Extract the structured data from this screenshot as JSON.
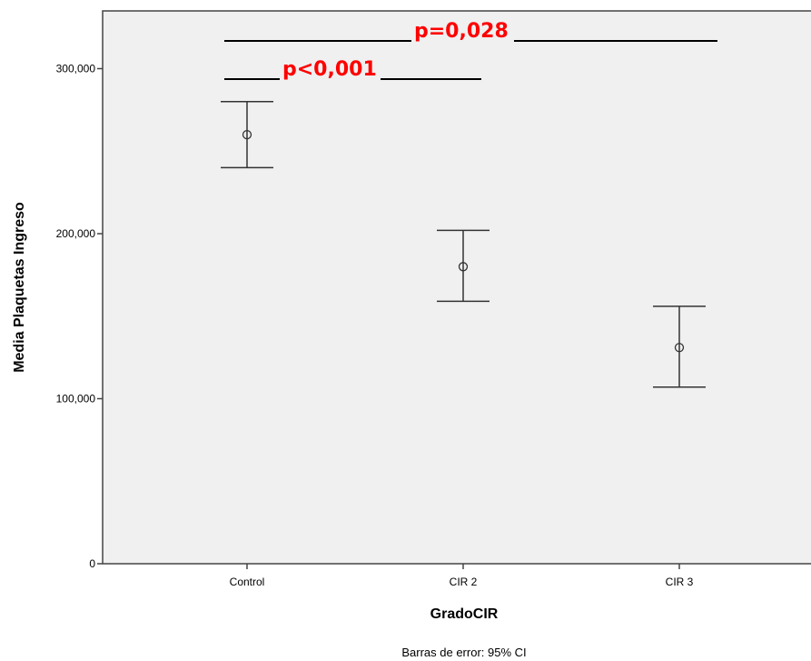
{
  "chart_data": {
    "type": "scatter",
    "subtype": "error-bar",
    "title": "",
    "xlabel": "GradoCIR",
    "ylabel": "Media Plaquetas Ingreso",
    "ylim": [
      0,
      330000
    ],
    "yticks": [
      0,
      100000,
      200000,
      300000
    ],
    "ytick_labels": [
      "0",
      "100,000",
      "200,000",
      "300,000"
    ],
    "categories": [
      "Control",
      "CIR 2",
      "CIR 3"
    ],
    "series": [
      {
        "mean": [
          260000,
          180000,
          131000
        ],
        "ci_lower": [
          240000,
          159000,
          107000
        ],
        "ci_upper": [
          280000,
          202000,
          156000
        ]
      }
    ],
    "grid": false,
    "legend": "none",
    "footnote": "Barras de error: 95% CI",
    "annotations": [
      {
        "text": "p=0,028",
        "compares": [
          "Control",
          "CIR 3"
        ],
        "color": "#ff0000"
      },
      {
        "text": "p<0,001",
        "compares": [
          "Control",
          "CIR 2"
        ],
        "color": "#ff0000"
      }
    ],
    "colors": {
      "plot_background": "#f0f0f0",
      "marks": "#333333",
      "annotation": "#ff0000"
    }
  }
}
